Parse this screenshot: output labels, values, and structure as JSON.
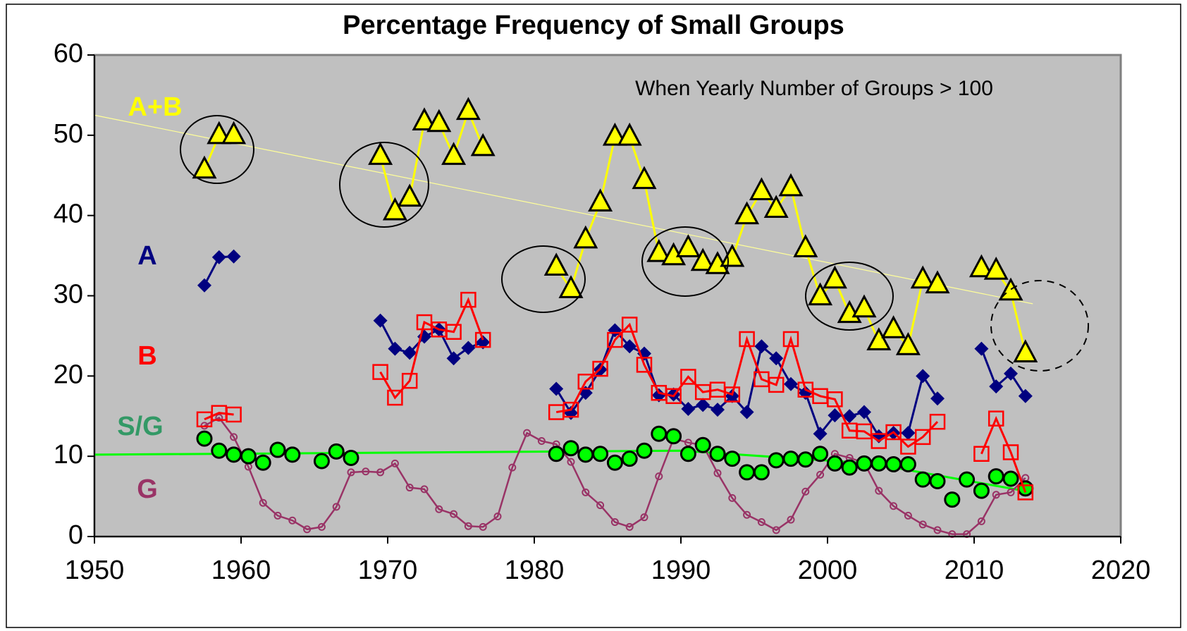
{
  "chart_data": {
    "type": "line",
    "title": "Percentage Frequency of Small Groups",
    "annotation": "When Yearly Number of Groups > 100",
    "xlim": [
      1950,
      2020
    ],
    "xticks": [
      1950,
      1960,
      1970,
      1980,
      1990,
      2000,
      2010,
      2020
    ],
    "ylim": [
      0,
      60
    ],
    "yticks": [
      0,
      10,
      20,
      30,
      40,
      50,
      60
    ],
    "grid": false,
    "plot_background": "#c0c0c0",
    "x": [
      1957.5,
      1958.5,
      1959.5,
      1960.5,
      1961.5,
      1962.5,
      1963.5,
      1964.5,
      1965.5,
      1966.5,
      1967.5,
      1968.5,
      1969.5,
      1970.5,
      1971.5,
      1972.5,
      1973.5,
      1974.5,
      1975.5,
      1976.5,
      1977.5,
      1978.5,
      1979.5,
      1980.5,
      1981.5,
      1982.5,
      1983.5,
      1984.5,
      1985.5,
      1986.5,
      1987.5,
      1988.5,
      1989.5,
      1990.5,
      1991.5,
      1992.5,
      1993.5,
      1994.5,
      1995.5,
      1996.5,
      1997.5,
      1998.5,
      1999.5,
      2000.5,
      2001.5,
      2002.5,
      2003.5,
      2004.5,
      2005.5,
      2006.5,
      2007.5,
      2008.5,
      2009.5,
      2010.5,
      2011.5,
      2012.5,
      2013.5
    ],
    "series": [
      {
        "name": "G",
        "color": "#993366",
        "label_color": "#993366",
        "marker": "small-circle",
        "line": true,
        "values": [
          13.8,
          14.8,
          12.4,
          8.7,
          4.2,
          2.6,
          2,
          0.9,
          1.2,
          3.7,
          8,
          8.1,
          8,
          9.1,
          6.1,
          5.9,
          3.4,
          2.8,
          1.3,
          1.2,
          2.5,
          8.6,
          12.9,
          11.9,
          11.5,
          9.3,
          5.5,
          3.9,
          1.8,
          1.2,
          2.4,
          7.5,
          12.2,
          11.7,
          11.4,
          7.9,
          4.8,
          2.7,
          1.8,
          0.8,
          2.1,
          5.6,
          7.7,
          10.3,
          9.8,
          9.2,
          5.7,
          3.8,
          2.6,
          1.5,
          0.8,
          0.3,
          0.3,
          1.9,
          5.2,
          5.5,
          7.3
        ]
      },
      {
        "name": "S/G",
        "color": "#00ff00",
        "label_color": "#339966",
        "marker": "circle",
        "line": false,
        "values": [
          12.2,
          10.7,
          10.2,
          10,
          9.2,
          10.8,
          10.2,
          null,
          9.4,
          10.6,
          9.8,
          null,
          null,
          null,
          null,
          null,
          null,
          null,
          null,
          null,
          null,
          null,
          null,
          null,
          10.3,
          11,
          10.2,
          10.3,
          9.2,
          9.7,
          10.7,
          12.8,
          12.5,
          10.3,
          11.4,
          10.3,
          9.7,
          8,
          8,
          9.5,
          9.7,
          9.6,
          10.3,
          9.1,
          8.6,
          9.1,
          9.1,
          9,
          9,
          7.1,
          6.9,
          4.6,
          7.1,
          5.7,
          7.5,
          7.2,
          6
        ]
      },
      {
        "name": "A",
        "color": "#000080",
        "label_color": "#000080",
        "marker": "diamond",
        "line": true,
        "values": [
          31.3,
          34.8,
          34.9,
          null,
          null,
          null,
          null,
          null,
          null,
          null,
          null,
          null,
          26.9,
          23.4,
          22.9,
          24.9,
          25.8,
          22.2,
          23.5,
          24.2,
          null,
          null,
          null,
          null,
          18.4,
          15.4,
          17.9,
          20.8,
          25.7,
          23.7,
          22.8,
          17.6,
          17.7,
          15.9,
          16.4,
          15.8,
          17.5,
          15.5,
          23.7,
          22.2,
          19,
          17.9,
          12.8,
          15.1,
          15,
          15.5,
          12.5,
          12.9,
          12.9,
          20,
          17.2,
          null,
          null,
          23.4,
          18.7,
          20.3,
          17.5
        ]
      },
      {
        "name": "B",
        "color": "#ff0000",
        "label_color": "#ff0000",
        "marker": "square",
        "line": true,
        "values": [
          14.6,
          15.4,
          15.2,
          null,
          null,
          null,
          null,
          null,
          null,
          null,
          null,
          null,
          20.5,
          17.3,
          19.4,
          26.7,
          25.8,
          25.5,
          29.5,
          24.5,
          null,
          null,
          null,
          null,
          15.5,
          15.8,
          19.3,
          20.9,
          24.5,
          26.4,
          21.4,
          17.9,
          17.5,
          19.9,
          18,
          18.3,
          17.7,
          24.6,
          19.6,
          18.9,
          24.6,
          18.3,
          17.5,
          17.1,
          13.2,
          13.1,
          11.9,
          13,
          11.2,
          12.4,
          14.3,
          null,
          null,
          10.3,
          14.7,
          10.5,
          5.5
        ]
      },
      {
        "name": "A+B",
        "color": "#ffff00",
        "label_color": "#ffff00",
        "marker": "triangle",
        "line": true,
        "values": [
          45.7,
          50,
          50,
          null,
          null,
          null,
          null,
          null,
          null,
          null,
          null,
          null,
          47.4,
          40.5,
          42.2,
          51.7,
          51.5,
          47.4,
          53,
          48.5,
          null,
          null,
          null,
          null,
          33.6,
          30.8,
          37,
          41.6,
          49.8,
          49.8,
          44.4,
          35.3,
          34.9,
          35.9,
          34.2,
          33.8,
          34.7,
          40,
          43,
          40.8,
          43.5,
          35.9,
          29.9,
          32,
          27.7,
          28.4,
          24.3,
          25.8,
          23.7,
          32,
          31.4,
          null,
          null,
          33.4,
          33.1,
          30.5,
          22.8
        ]
      }
    ],
    "trend_lines": [
      {
        "color": "#ffff99",
        "x": [
          1950,
          2014
        ],
        "values": [
          52.5,
          29
        ]
      },
      {
        "color": "#00ff00",
        "x": [
          1950,
          1990,
          2003,
          2014
        ],
        "values": [
          10.2,
          10.7,
          9.1,
          5.5
        ]
      }
    ]
  }
}
